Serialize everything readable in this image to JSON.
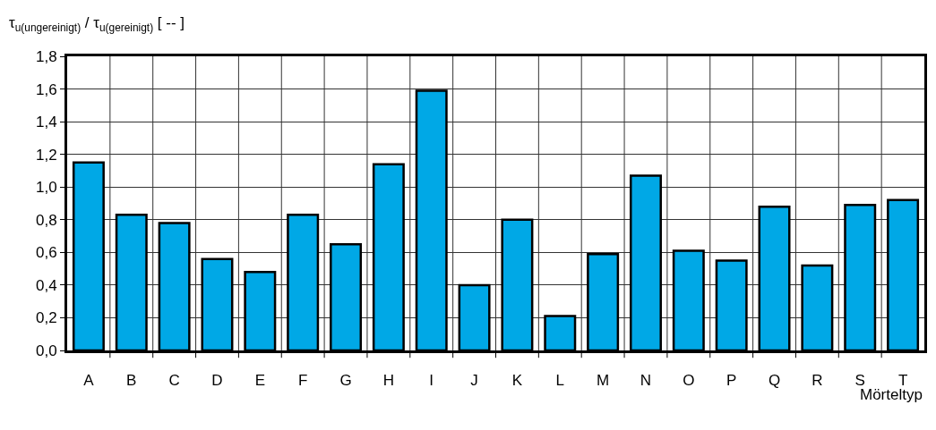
{
  "chart_data": {
    "type": "bar",
    "ylabel": "τ$_{u(ungereinigt)}$ / τ$_{u(gereinigt)}$ [ -- ]",
    "xlabel": "Mörteltyp",
    "categories": [
      "A",
      "B",
      "C",
      "D",
      "E",
      "F",
      "G",
      "H",
      "I",
      "J",
      "K",
      "L",
      "M",
      "N",
      "O",
      "P",
      "Q",
      "R",
      "S",
      "T"
    ],
    "values": [
      1.15,
      0.83,
      0.78,
      0.56,
      0.48,
      0.83,
      0.65,
      1.14,
      1.59,
      0.4,
      0.8,
      0.21,
      0.59,
      1.07,
      0.61,
      0.55,
      0.88,
      0.52,
      0.89,
      0.92
    ],
    "color": "#00a8e6",
    "ylim": [
      0,
      1.8
    ],
    "yticks": [
      {
        "value": 0,
        "label": "0,0"
      },
      {
        "value": 0.2,
        "label": "0,2"
      },
      {
        "value": 0.4,
        "label": "0,4"
      },
      {
        "value": 0.6,
        "label": "0,6"
      },
      {
        "value": 0.8,
        "label": "0,8"
      },
      {
        "value": 1.0,
        "label": "1,0"
      },
      {
        "value": 1.2,
        "label": "1,2"
      },
      {
        "value": 1.4,
        "label": "1,4"
      },
      {
        "value": 1.6,
        "label": "1,6"
      },
      {
        "value": 1.8,
        "label": "1,8"
      }
    ],
    "grid": true
  }
}
